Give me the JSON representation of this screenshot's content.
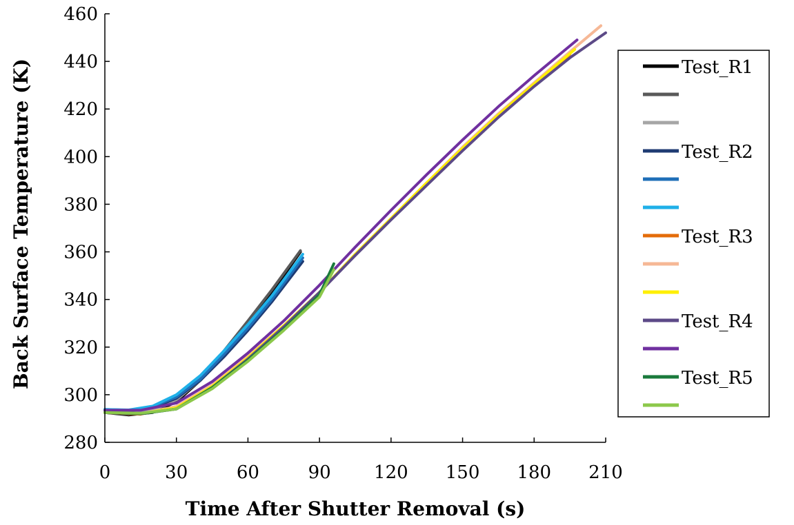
{
  "chart_data": {
    "type": "line",
    "xlabel": "Time After Shutter Removal (s)",
    "ylabel": "Back Surface Temperature (K)",
    "xlim": [
      0,
      210
    ],
    "ylim": [
      280,
      460
    ],
    "xticks": [
      0,
      30,
      60,
      90,
      120,
      150,
      180,
      210
    ],
    "yticks": [
      280,
      300,
      320,
      340,
      360,
      380,
      400,
      420,
      440,
      460
    ],
    "grid": false,
    "legend_position": "right",
    "series": [
      {
        "name": "Test_R1",
        "color": "#000000",
        "x": [
          0,
          10,
          20,
          30,
          40,
          50,
          60,
          70,
          82
        ],
        "y": [
          292.5,
          291.5,
          292.5,
          297,
          306,
          318,
          330,
          343,
          360
        ]
      },
      {
        "name": "",
        "color": "#595959",
        "x": [
          0,
          10,
          20,
          30,
          40,
          50,
          60,
          70,
          82
        ],
        "y": [
          292.5,
          291.8,
          293,
          297.5,
          306.5,
          318.5,
          331,
          344,
          360.5
        ]
      },
      {
        "name": "",
        "color": "#a6a6a6",
        "x": [
          0,
          10,
          20,
          30,
          40,
          50,
          60,
          70,
          82
        ],
        "y": [
          292.8,
          292.3,
          293.5,
          298,
          306,
          317,
          329,
          341,
          357
        ]
      },
      {
        "name": "Test_R2",
        "color": "#1f3b73",
        "x": [
          0,
          10,
          20,
          30,
          40,
          50,
          60,
          70,
          83
        ],
        "y": [
          293.5,
          293.2,
          294.5,
          298.5,
          306,
          316,
          327,
          339,
          356
        ]
      },
      {
        "name": "",
        "color": "#1f6fb8",
        "x": [
          0,
          10,
          20,
          30,
          40,
          50,
          60,
          70,
          83
        ],
        "y": [
          293.8,
          293.5,
          295,
          299,
          306.5,
          317,
          328,
          340,
          357.5
        ]
      },
      {
        "name": "",
        "color": "#1fb0e8",
        "x": [
          0,
          10,
          20,
          30,
          40,
          50,
          60,
          70,
          83
        ],
        "y": [
          293.8,
          293.6,
          295.2,
          300,
          308,
          318.5,
          329.5,
          341.5,
          359
        ]
      },
      {
        "name": "Test_R3",
        "color": "#e46c0a",
        "x": [
          0,
          15,
          30,
          45,
          60,
          75,
          90,
          105,
          120,
          135,
          150,
          165,
          180,
          195
        ],
        "y": [
          292.5,
          291.8,
          295,
          304,
          316,
          329,
          343,
          359,
          374,
          389,
          403,
          417,
          430,
          443
        ]
      },
      {
        "name": "",
        "color": "#f6b896",
        "x": [
          0,
          15,
          30,
          45,
          60,
          75,
          90,
          105,
          120,
          135,
          150,
          165,
          180,
          195,
          208
        ],
        "y": [
          292.5,
          292,
          295,
          304,
          316,
          329,
          343,
          359,
          374,
          389,
          404,
          418,
          431,
          444,
          455
        ]
      },
      {
        "name": "",
        "color": "#ffef00",
        "x": [
          0,
          15,
          30,
          45,
          60,
          75,
          90,
          105,
          120,
          135,
          150,
          165,
          180,
          197
        ],
        "y": [
          292.5,
          292,
          294.5,
          303.5,
          315.5,
          329,
          343,
          359,
          374,
          389,
          403.5,
          417.5,
          430.5,
          445
        ]
      },
      {
        "name": "Test_R4",
        "color": "#5c4a87",
        "x": [
          0,
          15,
          30,
          45,
          60,
          75,
          90,
          105,
          120,
          135,
          150,
          165,
          180,
          195,
          210
        ],
        "y": [
          292.5,
          292,
          294,
          303,
          315,
          328.5,
          343,
          358.5,
          373.5,
          388,
          402.5,
          416.5,
          429.5,
          441.5,
          452
        ]
      },
      {
        "name": "",
        "color": "#7030a0",
        "x": [
          0,
          15,
          30,
          45,
          60,
          75,
          90,
          105,
          120,
          135,
          150,
          165,
          180,
          198
        ],
        "y": [
          293.5,
          293.5,
          296.5,
          305.5,
          317.5,
          331,
          346,
          362,
          377.5,
          392.5,
          407,
          421,
          434,
          449
        ]
      },
      {
        "name": "Test_R5",
        "color": "#1a7a3c",
        "x": [
          0,
          15,
          30,
          45,
          60,
          75,
          90,
          96
        ],
        "y": [
          292.5,
          292,
          294,
          303,
          314.5,
          327.5,
          342,
          355
        ]
      },
      {
        "name": "",
        "color": "#8cc84b",
        "x": [
          0,
          15,
          30,
          45,
          60,
          75,
          90,
          96
        ],
        "y": [
          292.5,
          292.2,
          294,
          302.5,
          314,
          327,
          341,
          352.5
        ]
      }
    ]
  }
}
